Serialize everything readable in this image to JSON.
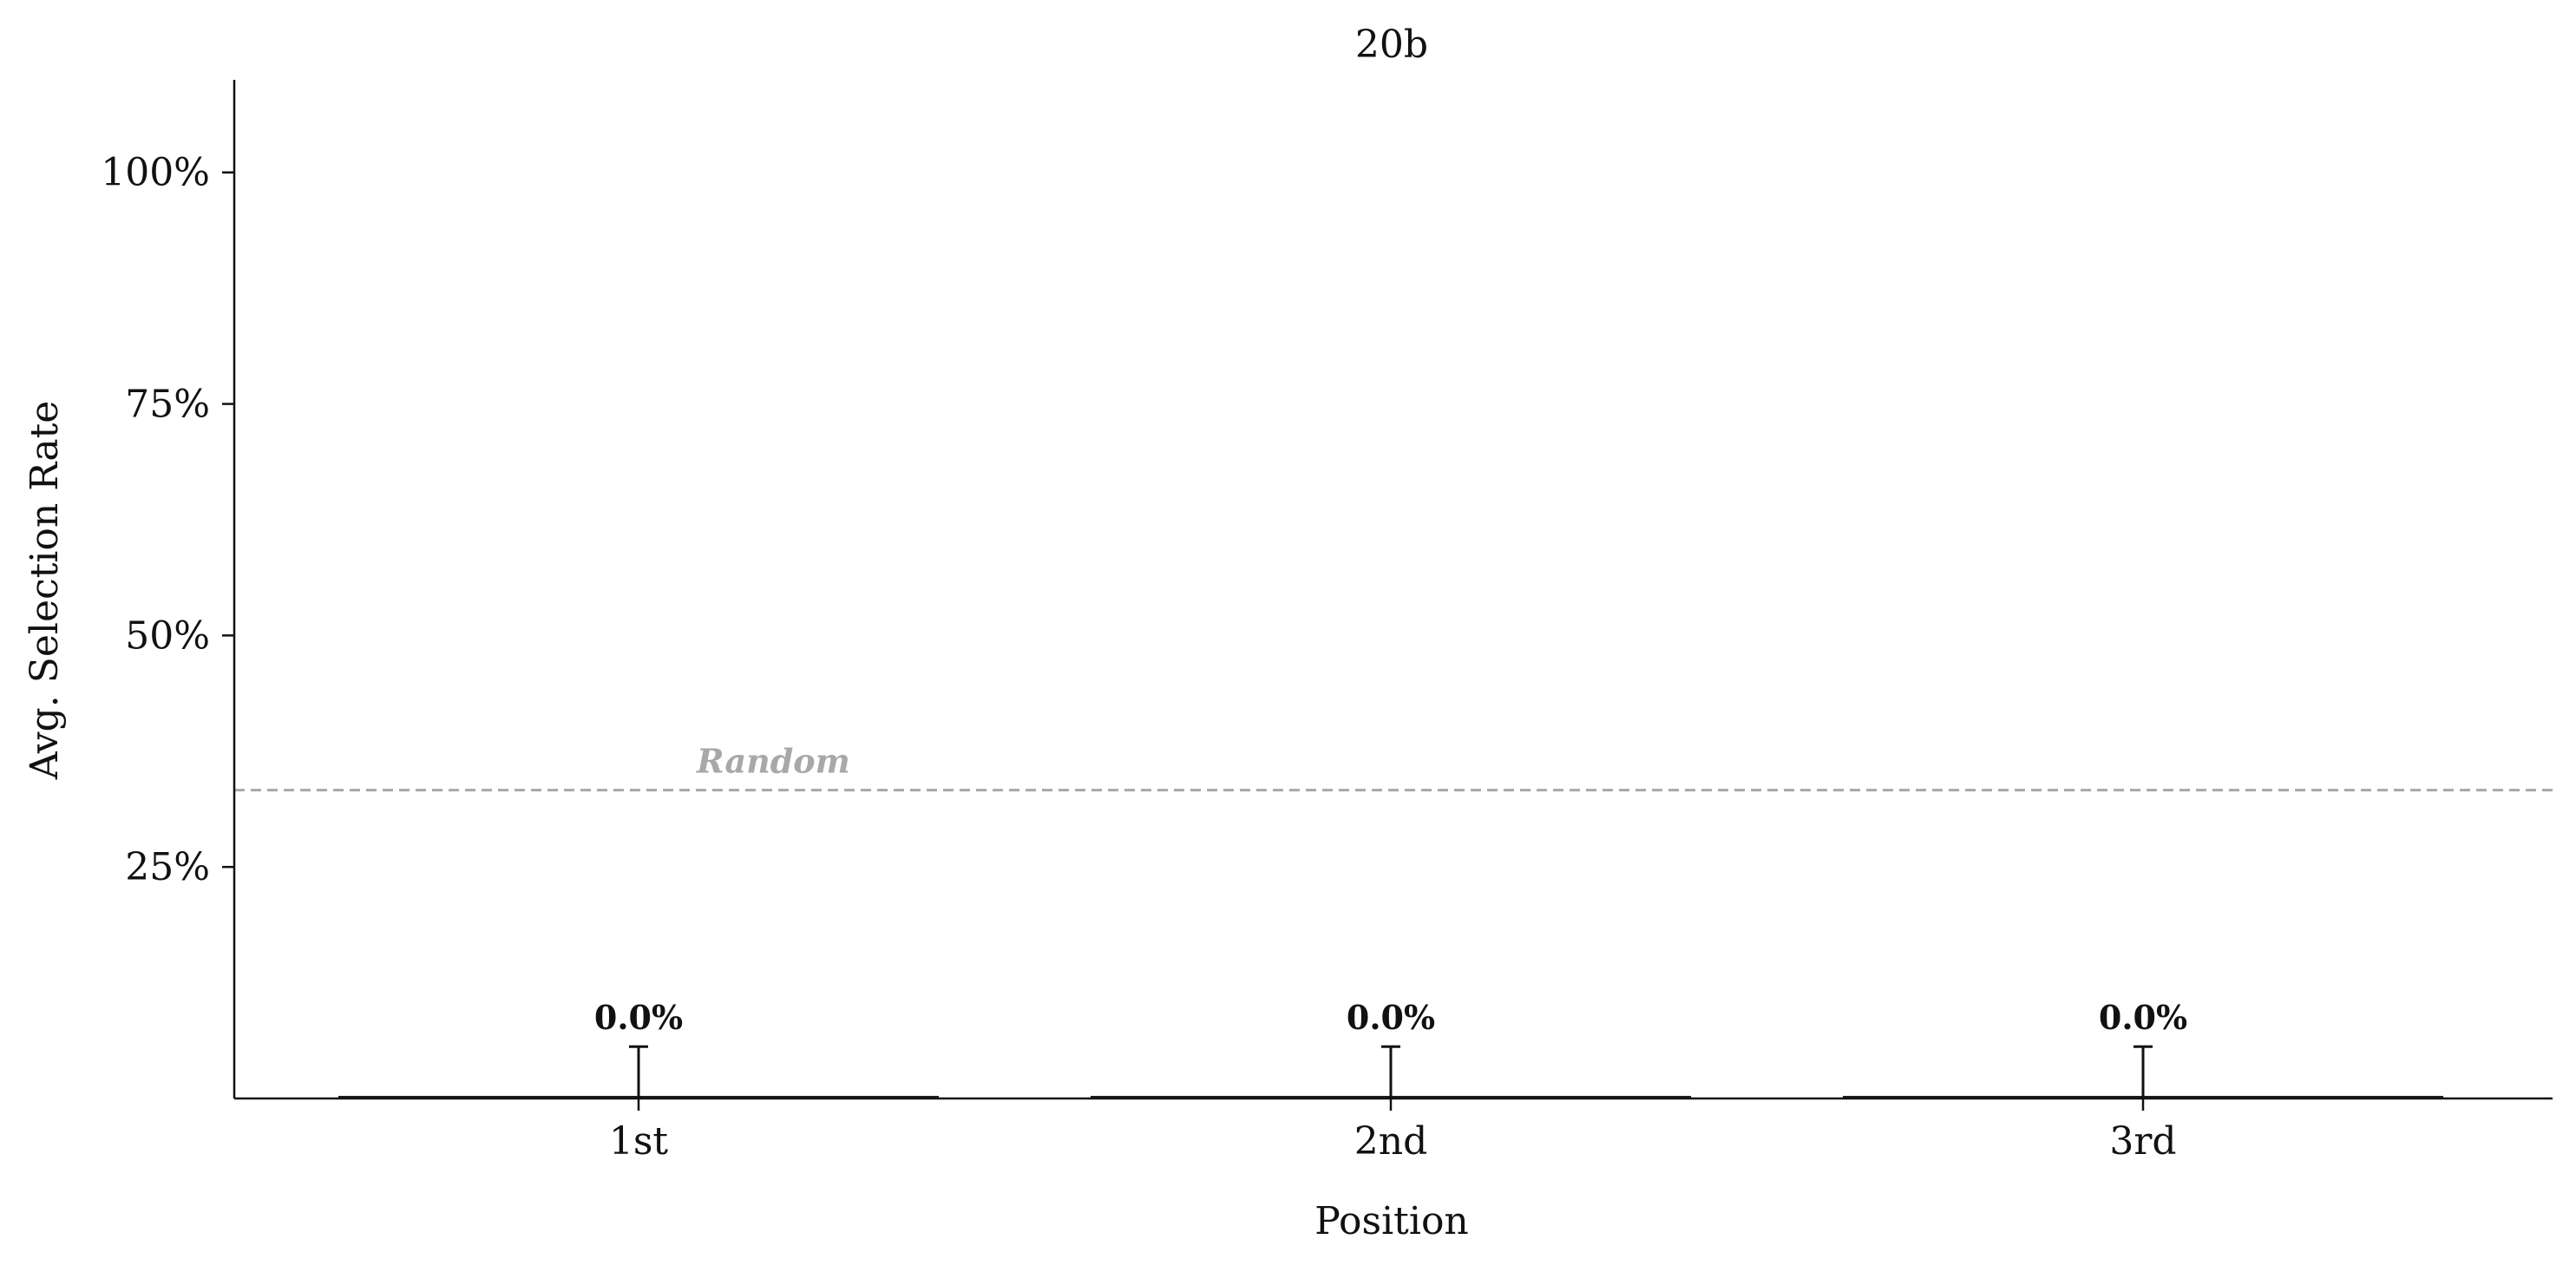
{
  "chart_data": {
    "type": "bar",
    "title": "20b",
    "xlabel": "Position",
    "ylabel": "Avg. Selection Rate",
    "categories": [
      "1st",
      "2nd",
      "3rd"
    ],
    "values": [
      0.0,
      0.0,
      0.0
    ],
    "error": [
      5.6,
      5.6,
      5.6
    ],
    "value_labels": [
      "0.0%",
      "0.0%",
      "0.0%"
    ],
    "ylim": [
      0,
      110
    ],
    "yticks": [
      25,
      50,
      75,
      100
    ],
    "ytick_labels": [
      "25%",
      "50%",
      "75%",
      "100%"
    ],
    "reference_line": {
      "label": "Random",
      "value": 33.3,
      "style": "dashed",
      "color": "#a8a8a8"
    },
    "grid": false,
    "legend": "none"
  }
}
